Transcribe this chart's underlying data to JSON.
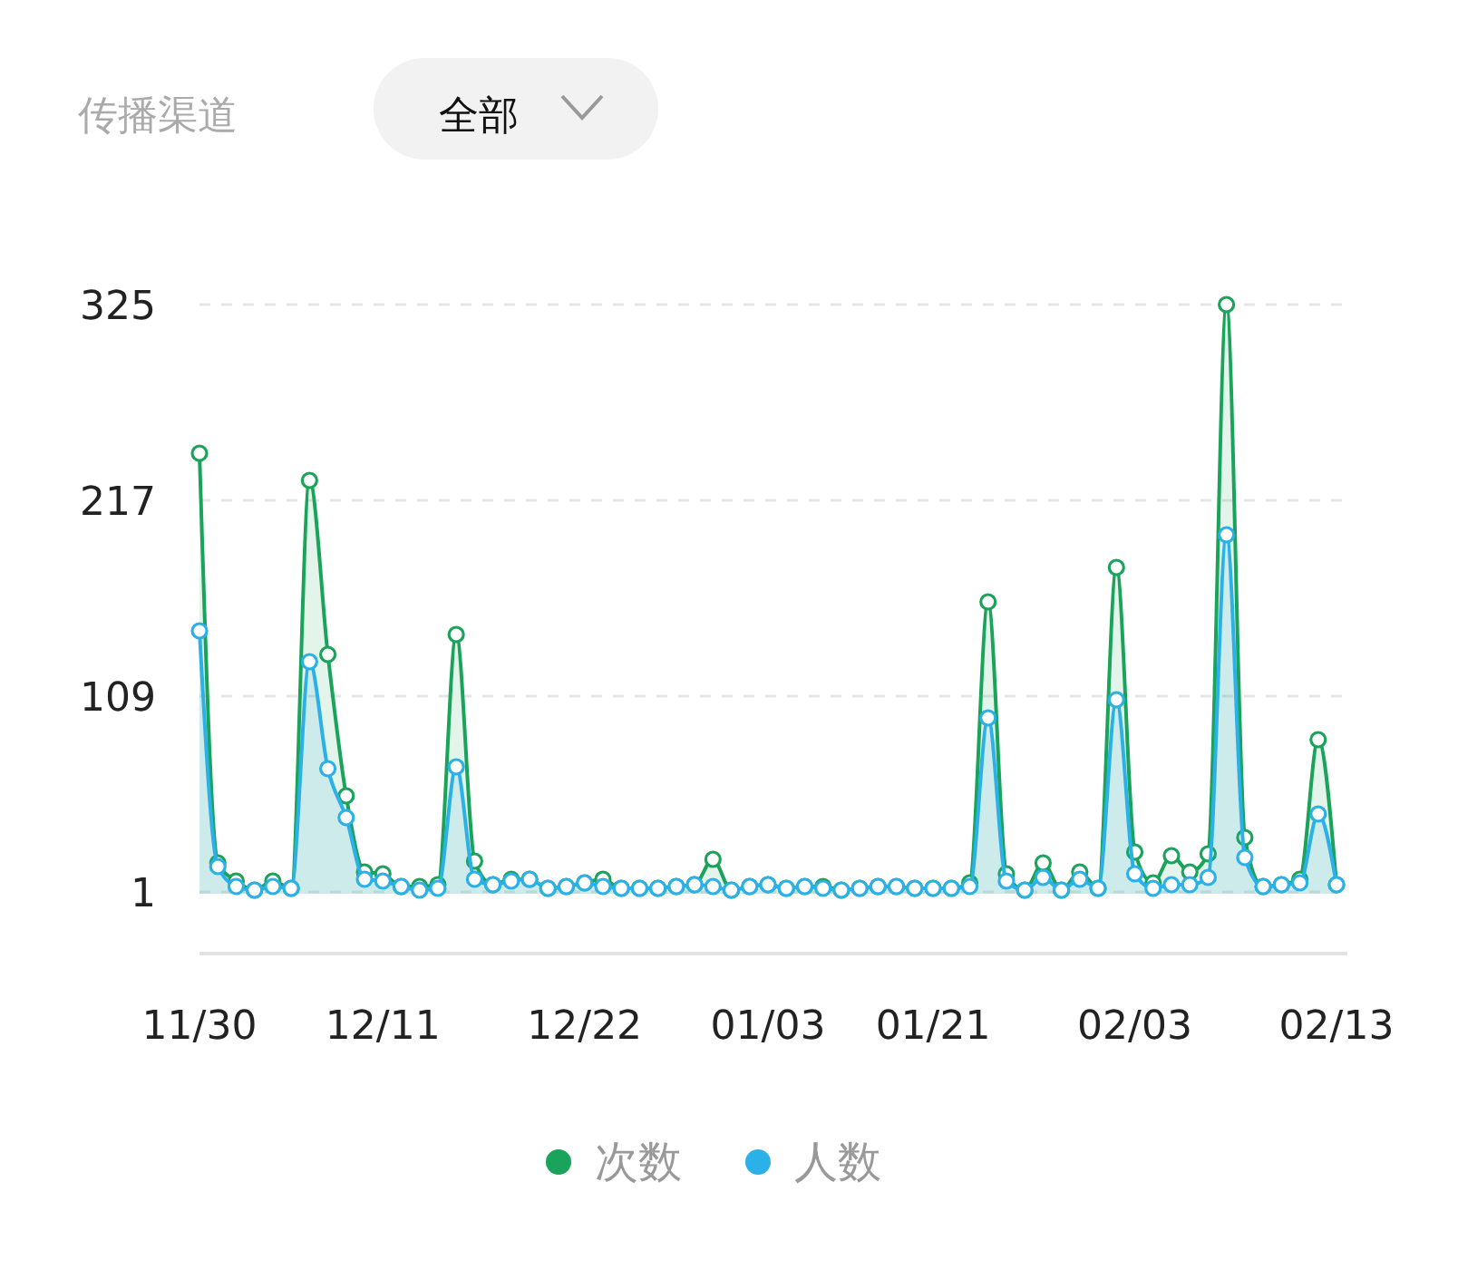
{
  "chart_data": {
    "type": "area",
    "title": "传播渠道",
    "subtitle": "全部",
    "categories": [
      "11/30",
      null,
      null,
      null,
      null,
      null,
      null,
      null,
      null,
      null,
      "12/11",
      null,
      null,
      null,
      null,
      null,
      null,
      null,
      null,
      null,
      null,
      "12/22",
      null,
      null,
      null,
      null,
      null,
      null,
      null,
      null,
      null,
      "01/03",
      null,
      null,
      null,
      null,
      null,
      null,
      null,
      null,
      "01/21",
      null,
      null,
      null,
      null,
      null,
      null,
      null,
      null,
      null,
      null,
      "02/03",
      null,
      null,
      null,
      null,
      null,
      null,
      null,
      null,
      null,
      null,
      "02/13"
    ],
    "series": [
      {
        "name": "次数",
        "color": "#1aa35a",
        "values": [
          243,
          17,
          7,
          2,
          7,
          3,
          228,
          132,
          54,
          12,
          11,
          4,
          4,
          5,
          143,
          18,
          5,
          8,
          8,
          3,
          4,
          6,
          8,
          3,
          3,
          3,
          4,
          5,
          19,
          2,
          4,
          5,
          3,
          4,
          4,
          2,
          3,
          4,
          4,
          3,
          3,
          3,
          6,
          161,
          11,
          2,
          17,
          2,
          12,
          3,
          180,
          23,
          6,
          21,
          12,
          22,
          325,
          31,
          4,
          5,
          8,
          85,
          5
        ]
      },
      {
        "name": "人数",
        "color": "#2bb0e8",
        "values": [
          145,
          15,
          4,
          2,
          4,
          3,
          128,
          69,
          42,
          8,
          7,
          4,
          2,
          3,
          70,
          8,
          5,
          7,
          8,
          3,
          4,
          6,
          4,
          3,
          3,
          3,
          4,
          5,
          4,
          2,
          4,
          5,
          3,
          4,
          3,
          2,
          3,
          4,
          4,
          3,
          3,
          3,
          4,
          97,
          7,
          2,
          9,
          2,
          8,
          3,
          107,
          11,
          3,
          5,
          5,
          9,
          198,
          20,
          4,
          5,
          6,
          44,
          5
        ]
      }
    ],
    "ylim": [
      -33,
      325
    ],
    "yticks": [
      1,
      109,
      217,
      325
    ],
    "grid": "y",
    "legend": "bottom",
    "marker": "circle",
    "line_style": "solid"
  }
}
